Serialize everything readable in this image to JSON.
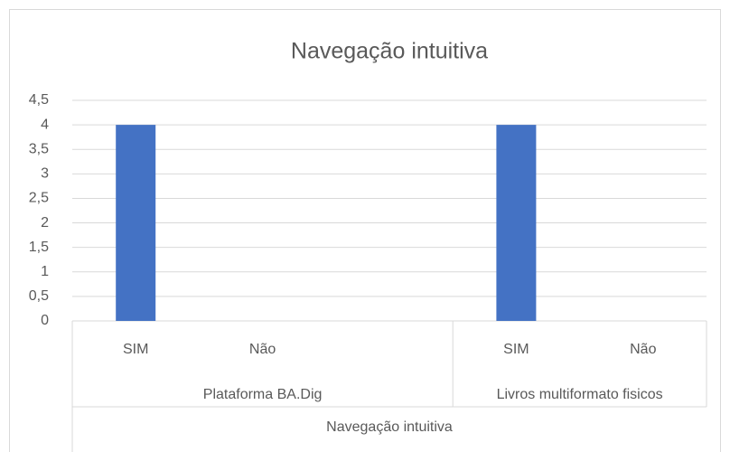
{
  "chart_data": {
    "type": "bar",
    "title": "Navegação intuitiva",
    "category_groups": [
      {
        "name": "Plataforma BA.Dig",
        "categories": [
          "SIM",
          "Não",
          null
        ]
      },
      {
        "name": "Livros multiformato fisicos",
        "categories": [
          "SIM",
          "Não"
        ]
      }
    ],
    "group_title": "Navegação intuitiva",
    "values": [
      4,
      0,
      null,
      4,
      0
    ],
    "color": "#4472c4",
    "ylim": [
      0,
      4.5
    ],
    "yticks": [
      0,
      {
        "value": 0.5,
        "label": "0,5"
      },
      1,
      {
        "value": 1.5,
        "label": "1,5"
      },
      2,
      {
        "value": 2.5,
        "label": "2,5"
      },
      3,
      {
        "value": 3.5,
        "label": "3,5"
      },
      4,
      {
        "value": 4.5,
        "label": "4,5"
      }
    ],
    "grid": true
  }
}
